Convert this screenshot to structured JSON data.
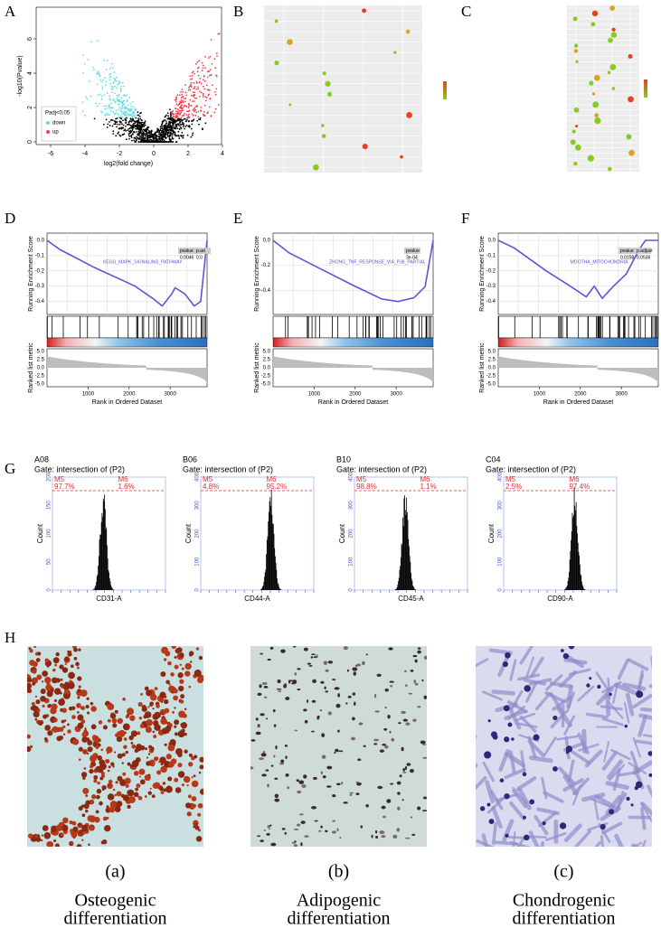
{
  "panel_labels": [
    "A",
    "B",
    "C",
    "D",
    "E",
    "F",
    "G",
    "H"
  ],
  "volcano": {
    "ylabel": "-log10(Pvalue)",
    "xlabel": "log2(fold change)",
    "xticks": [
      "-6",
      "-4",
      "-2",
      "0",
      "2",
      "4"
    ],
    "yticks": [
      "0",
      "2",
      "4",
      "6"
    ],
    "legend_title": "Padj<0.05",
    "legend": [
      "down",
      "up"
    ]
  },
  "gsea": [
    {
      "pathway": "KEGG_MAPK_SIGNALING_PATHWAY",
      "table_header": [
        "pvalue",
        "p.ad"
      ],
      "table_values": [
        "0.0046",
        "0.0"
      ],
      "es_ticks": [
        "0.0",
        "-0.1",
        "-0.2",
        "-0.3",
        "-0.4"
      ]
    },
    {
      "pathway": "ZHONG_TNF_RESPONSE_VIA_P38_PARTIAL",
      "table_header": [
        "pvalue"
      ],
      "table_values": [
        "3e-04"
      ],
      "es_ticks": [
        "0.0",
        "-0.2",
        "-0.4"
      ]
    },
    {
      "pathway": "MOOTHA_MITOCHONDRIA",
      "table_header": [
        "pvalue",
        "p.adjust"
      ],
      "table_values": [
        "0.0158",
        "0.0536"
      ],
      "es_ticks": [
        "0.0",
        "-0.1",
        "-0.2",
        "-0.3",
        "-0.4"
      ]
    }
  ],
  "gsea_common": {
    "ylabel": "Running Enrichment Score",
    "ylabel2": "Ranked list metric",
    "xlabel": "Rank in Ordered Dataset",
    "xticks": [
      "1000",
      "2000",
      "3000"
    ],
    "metric_ticks": [
      "5.0",
      "2.5",
      "0.0",
      "-2.5",
      "-5.0"
    ]
  },
  "flow": [
    {
      "sample": "A08",
      "gate": "Gate: intersection of (P2)",
      "m5": "M5",
      "m6": "M6",
      "p5": "97.7%",
      "p6": "1.6%",
      "xlabel": "CD31-A",
      "ylabel": "Count",
      "yticks": [
        "0",
        "50",
        "100",
        "150",
        "200"
      ]
    },
    {
      "sample": "B06",
      "gate": "Gate: intersection of (P2)",
      "m5": "M5",
      "m6": "M6",
      "p5": "4.8%",
      "p6": "95.2%",
      "xlabel": "CD44-A",
      "ylabel": "Count",
      "yticks": [
        "0",
        "100",
        "200",
        "300",
        "400"
      ]
    },
    {
      "sample": "B10",
      "gate": "Gate: intersection of (P2)",
      "m5": "M5",
      "m6": "M6",
      "p5": "98.8%",
      "p6": "1.1%",
      "xlabel": "CD45-A",
      "ylabel": "Count",
      "yticks": [
        "0",
        "100",
        "200",
        "300",
        "400"
      ]
    },
    {
      "sample": "C04",
      "gate": "Gate: intersection of (P2)",
      "m5": "M5",
      "m6": "M6",
      "p5": "2.5%",
      "p6": "97.4%",
      "xlabel": "CD90-A",
      "ylabel": "Count",
      "yticks": [
        "0",
        "100",
        "200",
        "300",
        "400"
      ]
    }
  ],
  "stains": [
    {
      "tag": "(a)",
      "line1": "Osteogenic",
      "line2": "differentiation"
    },
    {
      "tag": "(b)",
      "line1": "Adipogenic",
      "line2": "differentiation"
    },
    {
      "tag": "(c)",
      "line1": "Chondrogenic",
      "line2": "differentiation"
    }
  ]
}
